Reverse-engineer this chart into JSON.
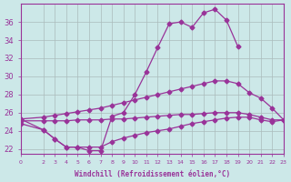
{
  "background_color": "#cce8e8",
  "grid_color": "#aabbbb",
  "line_color": "#993399",
  "xlabel": "Windchill (Refroidissement éolien,°C)",
  "xlabel_color": "#993399",
  "tick_color": "#993399",
  "xlim": [
    0,
    23
  ],
  "ylim": [
    21.5,
    38
  ],
  "yticks": [
    22,
    24,
    26,
    28,
    30,
    32,
    34,
    36
  ],
  "xticks": [
    0,
    2,
    3,
    4,
    5,
    6,
    7,
    8,
    9,
    10,
    11,
    12,
    13,
    14,
    15,
    16,
    17,
    18,
    19,
    20,
    21,
    22,
    23
  ],
  "line1_x": [
    0,
    2,
    3,
    4,
    5,
    6,
    7,
    8,
    9,
    10,
    11,
    12,
    13,
    14,
    15,
    16,
    17,
    18,
    19
  ],
  "line1_y": [
    25.3,
    24.1,
    23.1,
    22.2,
    22.2,
    21.8,
    21.8,
    25.6,
    26.0,
    28.0,
    30.5,
    33.2,
    35.8,
    36.0,
    35.4,
    37.0,
    37.4,
    36.2,
    33.3
  ],
  "line2_x": [
    0,
    2,
    3,
    4,
    5,
    6,
    7,
    8,
    9,
    10,
    11,
    12,
    13,
    14,
    15,
    16,
    17,
    18,
    19,
    20,
    21,
    22,
    23
  ],
  "line2_y": [
    25.3,
    25.5,
    25.7,
    25.9,
    26.1,
    26.3,
    26.5,
    26.8,
    27.1,
    27.4,
    27.7,
    28.0,
    28.3,
    28.6,
    28.9,
    29.2,
    29.5,
    29.5,
    29.2,
    28.2,
    27.6,
    26.5,
    25.2
  ],
  "line3_x": [
    0,
    2,
    3,
    4,
    5,
    6,
    7,
    8,
    9,
    10,
    11,
    12,
    13,
    14,
    15,
    16,
    17,
    18,
    19,
    20,
    21,
    22,
    23
  ],
  "line3_y": [
    25.1,
    25.1,
    25.1,
    25.1,
    25.2,
    25.2,
    25.2,
    25.3,
    25.3,
    25.4,
    25.5,
    25.6,
    25.7,
    25.8,
    25.8,
    25.9,
    26.0,
    26.0,
    26.0,
    25.8,
    25.5,
    25.2,
    25.2
  ],
  "line4_x": [
    0,
    2,
    3,
    4,
    5,
    6,
    7,
    8,
    9,
    10,
    11,
    12,
    13,
    14,
    15,
    16,
    17,
    18,
    19,
    20,
    21,
    22,
    23
  ],
  "line4_y": [
    24.8,
    24.1,
    23.1,
    22.2,
    22.2,
    22.2,
    22.2,
    22.8,
    23.2,
    23.5,
    23.8,
    24.0,
    24.2,
    24.5,
    24.8,
    25.0,
    25.2,
    25.4,
    25.5,
    25.5,
    25.2,
    25.0,
    25.2
  ]
}
